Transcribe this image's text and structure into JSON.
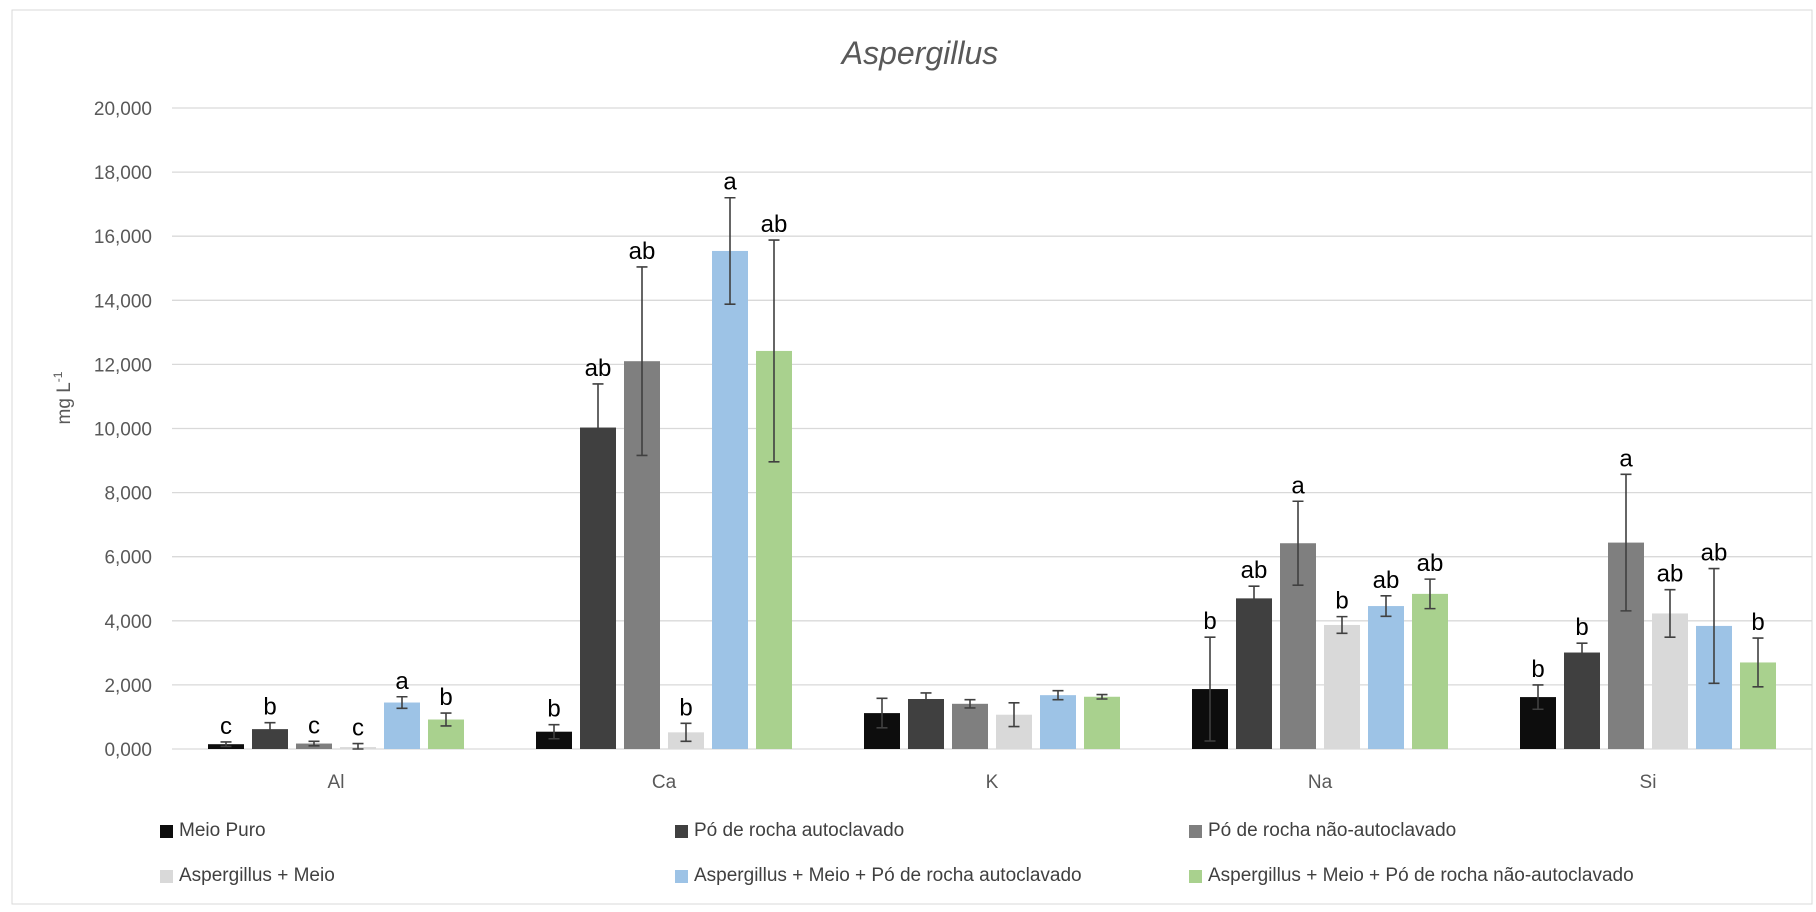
{
  "chart_data": {
    "type": "bar",
    "title": "Aspergillus",
    "ylabel": "mg L-1",
    "ylabel_main": "mg L",
    "ylabel_sup": "-1",
    "xlabel": "",
    "ylim": [
      0,
      20000
    ],
    "yticks": [
      0,
      2000,
      4000,
      6000,
      8000,
      10000,
      12000,
      14000,
      16000,
      18000,
      20000
    ],
    "ytick_labels": [
      "0,000",
      "2,000",
      "4,000",
      "6,000",
      "8,000",
      "10,000",
      "12,000",
      "14,000",
      "16,000",
      "18,000",
      "20,000"
    ],
    "grid": true,
    "legend_position": "bottom",
    "categories": [
      "Al",
      "Ca",
      "K",
      "Na",
      "Si"
    ],
    "series": [
      {
        "name": "Meio Puro",
        "color": "#0d0d0d",
        "values": [
          150,
          540,
          1120,
          1870,
          1620
        ],
        "errors": [
          70,
          220,
          460,
          1620,
          380
        ],
        "letters": [
          "c",
          "b",
          "",
          "b",
          "b"
        ]
      },
      {
        "name": "Pó de rocha autoclavado",
        "color": "#404040",
        "values": [
          620,
          10030,
          1560,
          4700,
          3010
        ],
        "errors": [
          200,
          1360,
          190,
          380,
          290
        ],
        "letters": [
          "b",
          "ab",
          "",
          "ab",
          "b"
        ]
      },
      {
        "name": "Pó de rocha não-autoclavado",
        "color": "#7f7f7f",
        "values": [
          170,
          12100,
          1410,
          6420,
          6440
        ],
        "errors": [
          70,
          2940,
          130,
          1310,
          2130
        ],
        "letters": [
          "c",
          "ab",
          "",
          "a",
          "a"
        ]
      },
      {
        "name": "Aspergillus + Meio",
        "color": "#d9d9d9",
        "values": [
          60,
          520,
          1070,
          3870,
          4230
        ],
        "errors": [
          110,
          280,
          370,
          260,
          740
        ],
        "letters": [
          "c",
          "b",
          "",
          "b",
          "ab"
        ]
      },
      {
        "name": "Aspergillus + Meio + Pó de rocha autoclavado",
        "color": "#9dc3e6",
        "values": [
          1450,
          15540,
          1680,
          4460,
          3840
        ],
        "errors": [
          180,
          1660,
          140,
          320,
          1790
        ],
        "letters": [
          "a",
          "a",
          "",
          "ab",
          "ab"
        ]
      },
      {
        "name": "Aspergillus + Meio + Pó de rocha não-autoclavado",
        "color": "#a9d18e",
        "values": [
          920,
          12420,
          1630,
          4840,
          2700
        ],
        "errors": [
          200,
          3460,
          70,
          460,
          760
        ],
        "letters": [
          "b",
          "ab",
          "",
          "ab",
          "b"
        ]
      }
    ]
  }
}
